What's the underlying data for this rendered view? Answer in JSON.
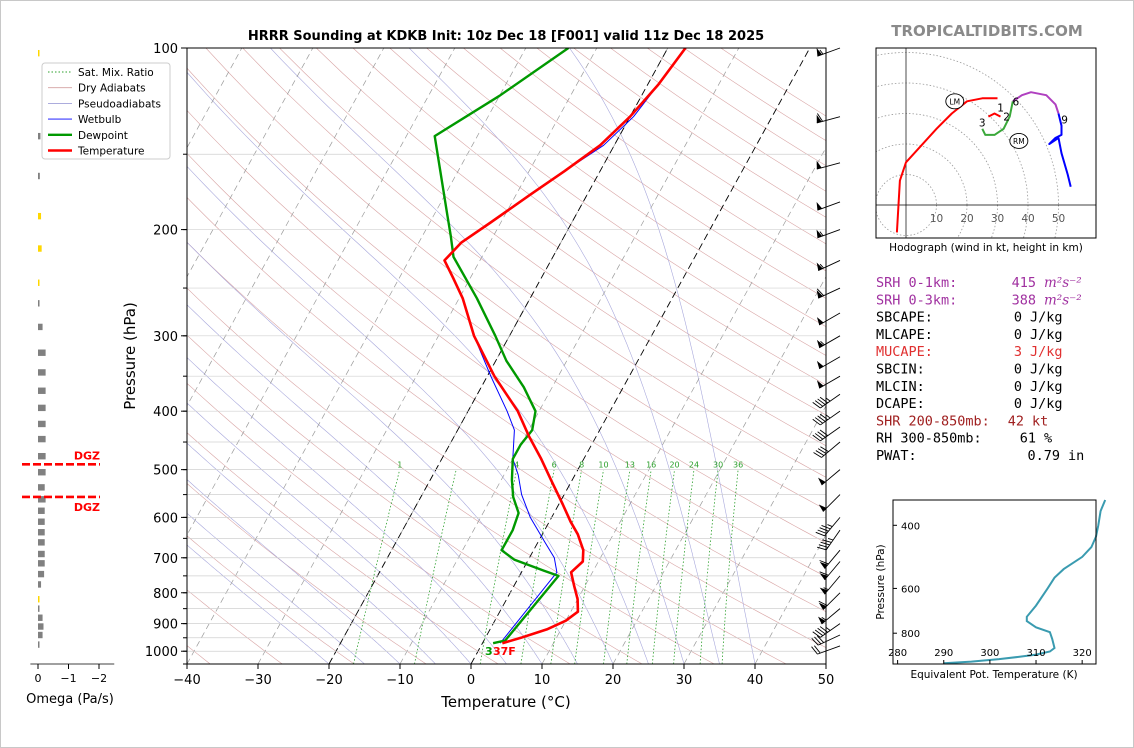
{
  "brand": "TROPICALTIDBITS.COM",
  "title": "HRRR Sounding at KDKB Init: 10z Dec 18 [F001] valid 11z Dec 18 2025",
  "skewt": {
    "xlabel": "Temperature (°C)",
    "ylabel": "Pressure (hPa)",
    "x_ticks": [
      "−40",
      "−30",
      "−20",
      "−10",
      "0",
      "10",
      "20",
      "30",
      "40",
      "50"
    ],
    "x_tick_values": [
      -40,
      -30,
      -20,
      -10,
      0,
      10,
      20,
      30,
      40,
      50
    ],
    "y_ticks": [
      "100",
      "200",
      "300",
      "400",
      "500",
      "600",
      "700",
      "800",
      "900",
      "1000"
    ],
    "y_tick_values": [
      100,
      200,
      300,
      400,
      500,
      600,
      700,
      800,
      900,
      1000
    ],
    "xlim": [
      -40,
      50
    ],
    "ylim": [
      1050,
      100
    ],
    "legend": [
      {
        "label": "Sat. Mix. Ratio",
        "color": "#2ca02c",
        "style": "dotted"
      },
      {
        "label": "Dry Adiabats",
        "color": "#d3a0a0",
        "style": "solid"
      },
      {
        "label": "Pseudoadiabats",
        "color": "#a0a0d8",
        "style": "solid"
      },
      {
        "label": "Wetbulb",
        "color": "#0000ff",
        "style": "solid"
      },
      {
        "label": "Dewpoint",
        "color": "#009900",
        "style": "solid"
      },
      {
        "label": "Temperature",
        "color": "#ff0000",
        "style": "solid"
      }
    ],
    "mixing_ratio_labels": [
      "1",
      "4",
      "6",
      "8",
      "10",
      "13",
      "16",
      "20",
      "24",
      "30",
      "36"
    ],
    "surface_dewpoint_label": "3",
    "surface_temp_label": "37F"
  },
  "chart_data": [
    {
      "type": "line",
      "title": "HRRR Sounding at KDKB Init: 10z Dec 18 [F001] valid 11z Dec 18 2025",
      "xlabel": "Temperature (°C)",
      "ylabel": "Pressure (hPa)",
      "xlim": [
        -40,
        50
      ],
      "ylim": [
        1050,
        100
      ],
      "y_scale": "log",
      "series": [
        {
          "name": "Temperature",
          "color": "#ff0000",
          "points": [
            [
              2.8,
              970
            ],
            [
              5,
              950
            ],
            [
              8,
              920
            ],
            [
              10,
              890
            ],
            [
              11,
              860
            ],
            [
              10,
              820
            ],
            [
              8.5,
              780
            ],
            [
              7,
              740
            ],
            [
              7.8,
              710
            ],
            [
              7,
              680
            ],
            [
              5,
              640
            ],
            [
              3,
              610
            ],
            [
              0.5,
              570
            ],
            [
              -3,
              520
            ],
            [
              -6,
              480
            ],
            [
              -9.5,
              440
            ],
            [
              -13,
              400
            ],
            [
              -19,
              350
            ],
            [
              -25,
              300
            ],
            [
              -29.5,
              260
            ],
            [
              -32.5,
              240
            ],
            [
              -35,
              225
            ],
            [
              -34,
              210
            ],
            [
              -31.5,
              195
            ],
            [
              -28,
              175
            ],
            [
              -25,
              160
            ],
            [
              -22,
              145
            ],
            [
              -20,
              130
            ],
            [
              -18.5,
              115
            ],
            [
              -17.5,
              100
            ]
          ]
        },
        {
          "name": "Dewpoint",
          "color": "#009900",
          "points": [
            [
              1.5,
              970
            ],
            [
              3,
              960
            ],
            [
              5.5,
              750
            ],
            [
              3,
              735
            ],
            [
              -2,
              705
            ],
            [
              -4.5,
              680
            ],
            [
              -4.5,
              630
            ],
            [
              -5,
              590
            ],
            [
              -7,
              555
            ],
            [
              -8.5,
              520
            ],
            [
              -10,
              480
            ],
            [
              -10,
              455
            ],
            [
              -9.5,
              430
            ],
            [
              -10.5,
              400
            ],
            [
              -14,
              365
            ],
            [
              -18.5,
              330
            ],
            [
              -22,
              300
            ],
            [
              -27.5,
              260
            ],
            [
              -34,
              222
            ],
            [
              -36,
              205
            ],
            [
              -38,
              190
            ],
            [
              -42.5,
              160
            ],
            [
              -46,
              140
            ],
            [
              -40,
              120
            ],
            [
              -34,
              100
            ]
          ]
        },
        {
          "name": "Wetbulb",
          "color": "#0000ff",
          "points": [
            [
              2.5,
              970
            ],
            [
              5,
              740
            ],
            [
              3.5,
              700
            ],
            [
              1,
              660
            ],
            [
              -3,
              600
            ],
            [
              -6,
              550
            ],
            [
              -8,
              510
            ],
            [
              -10,
              480
            ],
            [
              -12,
              430
            ],
            [
              -14.5,
              400
            ],
            [
              -19.5,
              350
            ],
            [
              -25,
              300
            ],
            [
              -29.5,
              260
            ],
            [
              -32.5,
              240
            ],
            [
              -35,
              225
            ],
            [
              -34,
              210
            ],
            [
              -31.5,
              195
            ],
            [
              -28,
              175
            ],
            [
              -25,
              160
            ],
            [
              -21.5,
              145
            ],
            [
              -19.5,
              130
            ],
            [
              -18.5,
              115
            ],
            [
              -17.5,
              100
            ]
          ]
        }
      ]
    },
    {
      "type": "bar",
      "title": "",
      "xlabel": "Omega (Pa/s)",
      "ylabel": "",
      "x_ticks": [
        "0",
        "−1",
        "−2"
      ],
      "x_tick_values": [
        0,
        -1,
        -2
      ],
      "xlim": [
        0.25,
        -2.5
      ],
      "y_scale": "log",
      "bars": [
        {
          "p": 102,
          "omega": -0.02,
          "color": "#ffd700"
        },
        {
          "p": 140,
          "omega": -0.08,
          "color": "#808080"
        },
        {
          "p": 163,
          "omega": -0.06,
          "color": "#808080"
        },
        {
          "p": 190,
          "omega": -0.1,
          "color": "#ffd700"
        },
        {
          "p": 215,
          "omega": -0.12,
          "color": "#ffd700"
        },
        {
          "p": 245,
          "omega": -0.03,
          "color": "#ffd700"
        },
        {
          "p": 265,
          "omega": -0.05,
          "color": "#808080"
        },
        {
          "p": 290,
          "omega": -0.15,
          "color": "#808080"
        },
        {
          "p": 320,
          "omega": -0.25,
          "color": "#808080"
        },
        {
          "p": 345,
          "omega": -0.25,
          "color": "#808080"
        },
        {
          "p": 370,
          "omega": -0.25,
          "color": "#808080"
        },
        {
          "p": 395,
          "omega": -0.25,
          "color": "#808080"
        },
        {
          "p": 420,
          "omega": -0.25,
          "color": "#808080"
        },
        {
          "p": 445,
          "omega": -0.25,
          "color": "#808080"
        },
        {
          "p": 475,
          "omega": -0.25,
          "color": "#808080"
        },
        {
          "p": 505,
          "omega": -0.25,
          "color": "#808080"
        },
        {
          "p": 535,
          "omega": -0.22,
          "color": "#808080"
        },
        {
          "p": 560,
          "omega": -0.25,
          "color": "#808080"
        },
        {
          "p": 585,
          "omega": -0.22,
          "color": "#808080"
        },
        {
          "p": 610,
          "omega": -0.22,
          "color": "#808080"
        },
        {
          "p": 635,
          "omega": -0.22,
          "color": "#808080"
        },
        {
          "p": 660,
          "omega": -0.22,
          "color": "#808080"
        },
        {
          "p": 690,
          "omega": -0.22,
          "color": "#808080"
        },
        {
          "p": 715,
          "omega": -0.22,
          "color": "#808080"
        },
        {
          "p": 745,
          "omega": -0.2,
          "color": "#808080"
        },
        {
          "p": 775,
          "omega": -0.1,
          "color": "#808080"
        },
        {
          "p": 820,
          "omega": -0.02,
          "color": "#ffd700"
        },
        {
          "p": 850,
          "omega": -0.04,
          "color": "#808080"
        },
        {
          "p": 880,
          "omega": -0.15,
          "color": "#808080"
        },
        {
          "p": 910,
          "omega": -0.18,
          "color": "#808080"
        },
        {
          "p": 940,
          "omega": -0.15,
          "color": "#808080"
        },
        {
          "p": 975,
          "omega": -0.02,
          "color": "#808080"
        }
      ],
      "dgz": {
        "label": "DGZ",
        "top_p": 490,
        "bottom_p": 555,
        "color": "#ff0000"
      }
    },
    {
      "type": "line",
      "title": "Hodograph (wind in kt, height in km)",
      "xlabel": "",
      "ylabel": "",
      "rings": [
        10,
        20,
        30,
        40,
        50
      ],
      "ring_labels": [
        "10",
        "20",
        "30",
        "40",
        "50"
      ],
      "segments": [
        {
          "color": "#ff0000",
          "points": [
            [
              -3,
              -9
            ],
            [
              -2,
              8
            ],
            [
              0,
              14
            ],
            [
              10,
              25
            ],
            [
              15,
              30
            ],
            [
              20,
              34
            ],
            [
              25,
              35
            ],
            [
              30,
              35
            ]
          ]
        },
        {
          "color": "#ff0000",
          "points": [
            [
              27,
              29
            ],
            [
              29,
              30
            ],
            [
              31,
              29
            ]
          ]
        },
        {
          "color": "#3aa83a",
          "points": [
            [
              35,
              34
            ],
            [
              34,
              29
            ],
            [
              32,
              25
            ],
            [
              29,
              23
            ],
            [
              26,
              23
            ],
            [
              25,
              25
            ]
          ]
        },
        {
          "color": "#b040c0",
          "points": [
            [
              35,
              34
            ],
            [
              38,
              36
            ],
            [
              41,
              37
            ],
            [
              46,
              36
            ],
            [
              49,
              33
            ],
            [
              50,
              30
            ]
          ]
        },
        {
          "color": "#0000ff",
          "points": [
            [
              50,
              30
            ],
            [
              51,
              26
            ],
            [
              51,
              23
            ],
            [
              49,
              22
            ],
            [
              47,
              20
            ],
            [
              50,
              22
            ],
            [
              51,
              17
            ],
            [
              53,
              10
            ],
            [
              54,
              6
            ]
          ]
        }
      ],
      "height_labels": [
        {
          "text": "1",
          "x": 31,
          "y": 32
        },
        {
          "text": "2",
          "x": 33,
          "y": 29
        },
        {
          "text": "3",
          "x": 25,
          "y": 27
        },
        {
          "text": "6",
          "x": 36,
          "y": 34
        },
        {
          "text": "9",
          "x": 52,
          "y": 28
        }
      ],
      "markers": [
        {
          "text": "LM",
          "x": 16,
          "y": 34
        },
        {
          "text": "RM",
          "x": 37,
          "y": 21
        }
      ]
    },
    {
      "type": "line",
      "title": "",
      "xlabel": "Equivalent Pot. Temperature (K)",
      "ylabel": "Pressure (hPa)",
      "x_ticks": [
        "280",
        "290",
        "300",
        "310",
        "320"
      ],
      "x_tick_values": [
        280,
        290,
        300,
        310,
        320
      ],
      "y_ticks": [
        "400",
        "600",
        "800"
      ],
      "y_tick_values": [
        400,
        600,
        800
      ],
      "xlim": [
        279,
        323
      ],
      "ylim": [
        975,
        340
      ],
      "series": [
        {
          "name": "",
          "color": "#3a9bb0",
          "points": [
            [
              290,
              970
            ],
            [
              296,
              960
            ],
            [
              302,
              945
            ],
            [
              306,
              932
            ],
            [
              310,
              918
            ],
            [
              313,
              900
            ],
            [
              314,
              880
            ],
            [
              313.5,
              830
            ],
            [
              313,
              795
            ],
            [
              310,
              770
            ],
            [
              308,
              740
            ],
            [
              308,
              720
            ],
            [
              310,
              670
            ],
            [
              312.5,
              600
            ],
            [
              314,
              560
            ],
            [
              316,
              530
            ],
            [
              320,
              490
            ],
            [
              322,
              460
            ],
            [
              323,
              430
            ],
            [
              323.5,
              400
            ],
            [
              324,
              365
            ],
            [
              325,
              340
            ]
          ]
        }
      ]
    }
  ],
  "winds": [
    {
      "p": 100,
      "dir": 250,
      "spd": 55
    },
    {
      "p": 130,
      "dir": 255,
      "spd": 60
    },
    {
      "p": 155,
      "dir": 255,
      "spd": 50
    },
    {
      "p": 180,
      "dir": 250,
      "spd": 50
    },
    {
      "p": 200,
      "dir": 250,
      "spd": 55
    },
    {
      "p": 225,
      "dir": 245,
      "spd": 55
    },
    {
      "p": 250,
      "dir": 245,
      "spd": 60
    },
    {
      "p": 275,
      "dir": 240,
      "spd": 50
    },
    {
      "p": 300,
      "dir": 240,
      "spd": 55
    },
    {
      "p": 325,
      "dir": 240,
      "spd": 50
    },
    {
      "p": 350,
      "dir": 240,
      "spd": 50
    },
    {
      "p": 375,
      "dir": 235,
      "spd": 45
    },
    {
      "p": 400,
      "dir": 235,
      "spd": 45
    },
    {
      "p": 425,
      "dir": 235,
      "spd": 40
    },
    {
      "p": 450,
      "dir": 230,
      "spd": 40
    },
    {
      "p": 500,
      "dir": 230,
      "spd": 50
    },
    {
      "p": 550,
      "dir": 225,
      "spd": 50
    },
    {
      "p": 600,
      "dir": 220,
      "spd": 45
    },
    {
      "p": 630,
      "dir": 215,
      "spd": 45
    },
    {
      "p": 680,
      "dir": 220,
      "spd": 60
    },
    {
      "p": 710,
      "dir": 220,
      "spd": 60
    },
    {
      "p": 750,
      "dir": 220,
      "spd": 55
    },
    {
      "p": 800,
      "dir": 225,
      "spd": 60
    },
    {
      "p": 850,
      "dir": 230,
      "spd": 55
    },
    {
      "p": 900,
      "dir": 235,
      "spd": 45
    },
    {
      "p": 940,
      "dir": 245,
      "spd": 30
    },
    {
      "p": 980,
      "dir": 250,
      "spd": 20
    }
  ],
  "indices": [
    {
      "label": "SRH 0-1km:",
      "value": "415",
      "unit": "m²s⁻²",
      "color": "#a030a0"
    },
    {
      "label": "SRH 0-3km:",
      "value": "388",
      "unit": "m²s⁻²",
      "color": "#a030a0"
    },
    {
      "label": "SBCAPE:",
      "value": "0",
      "unit": "J/kg",
      "color": "#000000"
    },
    {
      "label": "MLCAPE:",
      "value": "0",
      "unit": "J/kg",
      "color": "#000000"
    },
    {
      "label": "MUCAPE:",
      "value": "3",
      "unit": "J/kg",
      "color": "#e03030"
    },
    {
      "label": "SBCIN:",
      "value": "0",
      "unit": "J/kg",
      "color": "#000000"
    },
    {
      "label": "MLCIN:",
      "value": "0",
      "unit": "J/kg",
      "color": "#000000"
    },
    {
      "label": "DCAPE:",
      "value": "0",
      "unit": "J/kg",
      "color": "#000000"
    },
    {
      "label": "SHR 200-850mb:",
      "value": "42",
      "unit": "kt",
      "color": "#a02020"
    },
    {
      "label": "RH 300-850mb:",
      "value": "61",
      "unit": "%",
      "color": "#000000"
    },
    {
      "label": "PWAT:",
      "value": "0.79",
      "unit": "in",
      "color": "#000000"
    }
  ]
}
